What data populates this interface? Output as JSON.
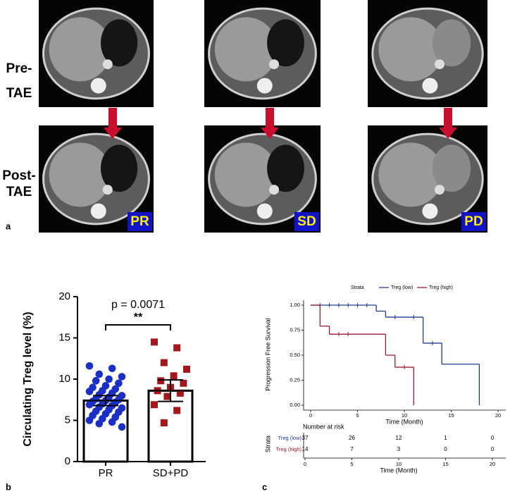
{
  "panel_a": {
    "letter": "a",
    "row_labels": [
      [
        "Pre-",
        "TAE"
      ],
      [
        "Post-",
        "TAE"
      ]
    ],
    "image_labels": [
      "PR",
      "SD",
      "PD"
    ]
  },
  "chart_data": [
    {
      "type": "bar",
      "panel_label": "b",
      "y_label": "Circulating Treg level (%)",
      "categories": [
        "PR",
        "SD+PD"
      ],
      "values": [
        7.4,
        8.6
      ],
      "errors": [
        0.6,
        1.3
      ],
      "points": [
        [
          11.6,
          11.3,
          10.6,
          10.3,
          10.0,
          9.8,
          9.5,
          9.2,
          9.0,
          8.8,
          8.6,
          8.5,
          8.3,
          8.1,
          8.0,
          7.8,
          7.6,
          7.5,
          7.4,
          7.3,
          7.2,
          7.0,
          6.9,
          6.8,
          6.6,
          6.5,
          6.3,
          6.1,
          6.0,
          5.8,
          5.6,
          5.4,
          5.2,
          5.0,
          4.8,
          4.6,
          4.2
        ],
        [
          14.5,
          13.8,
          12.0,
          11.2,
          10.4,
          9.8,
          9.5,
          9.0,
          8.6,
          8.3,
          7.9,
          6.9,
          6.2,
          4.7
        ]
      ],
      "point_colors": [
        "#1b2fc4",
        "#a3181c"
      ],
      "annotations": [
        "p = 0.0071",
        "**"
      ],
      "ylim": [
        0,
        20
      ],
      "yticks": [
        0,
        5,
        10,
        15,
        20
      ]
    },
    {
      "type": "step",
      "panel_label": "c",
      "y_label": "Progression Free Survival",
      "x_label": "Time (Month)",
      "legend_title": "Strata",
      "series": [
        {
          "name": "Treg (low)",
          "color": "#1f3a8f",
          "x": [
            0,
            7,
            8,
            12,
            14,
            18
          ],
          "values": [
            1.0,
            0.94,
            0.88,
            0.62,
            0.41,
            0.0
          ],
          "censor_x": [
            1,
            2,
            3,
            4,
            5,
            6,
            9,
            11,
            13
          ],
          "censor_values": [
            1.0,
            1.0,
            1.0,
            1.0,
            1.0,
            1.0,
            0.88,
            0.88,
            0.62
          ]
        },
        {
          "name": "Treg (high)",
          "color": "#a1192d",
          "x": [
            0,
            1,
            2,
            8,
            9,
            11
          ],
          "values": [
            1.0,
            0.79,
            0.71,
            0.5,
            0.38,
            0.0
          ],
          "censor_x": [
            3,
            4,
            10
          ],
          "censor_values": [
            0.71,
            0.71,
            0.38
          ]
        }
      ],
      "xlim": [
        0,
        20
      ],
      "xticks": [
        0,
        5,
        10,
        15,
        20
      ],
      "ylim": [
        0,
        1
      ],
      "yticks": [
        {
          "value": 0,
          "label": "0.00"
        },
        {
          "value": 0.25,
          "label": "0.25"
        },
        {
          "value": 0.5,
          "label": "0.50"
        },
        {
          "value": 0.75,
          "label": "0.75"
        },
        {
          "value": 1,
          "label": "1.00"
        }
      ],
      "risk_table": {
        "title": "Number at risk",
        "times": [
          0,
          5,
          10,
          15,
          20
        ],
        "counts": [
          [
            37,
            26,
            12,
            1,
            0
          ],
          [
            14,
            7,
            3,
            0,
            0
          ]
        ]
      }
    }
  ]
}
